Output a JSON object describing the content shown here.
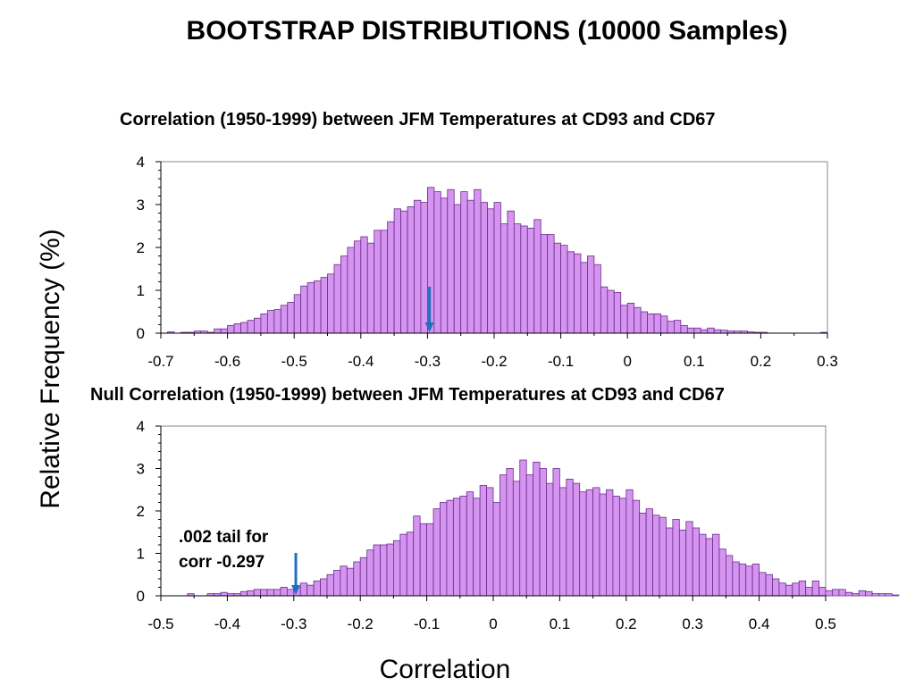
{
  "page_title": "BOOTSTRAP DISTRIBUTIONS (10000 Samples)",
  "shared_ylabel": "Relative Frequency (%)",
  "shared_xlabel": "Correlation",
  "colors": {
    "bar_fill": "#d494f0",
    "bar_stroke": "#6a2c8a",
    "arrow": "#1f6fc0",
    "axis": "#000000"
  },
  "chart_data": [
    {
      "type": "bar",
      "title": "Correlation (1950-1999) between JFM Temperatures at CD93 and CD67",
      "xlim": [
        -0.7,
        0.3
      ],
      "ylim": [
        0,
        4
      ],
      "xticks": [
        "-0.7",
        "-0.6",
        "-0.5",
        "-0.4",
        "-0.3",
        "-0.2",
        "-0.1",
        "0",
        "0.1",
        "0.2",
        "0.3"
      ],
      "yticks": [
        "0",
        "1",
        "2",
        "3",
        "4"
      ],
      "bin_width": 0.01,
      "x_start": -0.685,
      "values": [
        0.03,
        0.0,
        0.02,
        0.02,
        0.05,
        0.05,
        0.02,
        0.1,
        0.1,
        0.18,
        0.22,
        0.25,
        0.3,
        0.35,
        0.45,
        0.53,
        0.55,
        0.65,
        0.72,
        0.9,
        1.1,
        1.18,
        1.22,
        1.3,
        1.38,
        1.6,
        1.8,
        2.0,
        2.15,
        2.25,
        2.1,
        2.4,
        2.4,
        2.6,
        2.9,
        2.85,
        2.95,
        3.1,
        3.05,
        3.4,
        3.3,
        3.15,
        3.35,
        3.0,
        3.3,
        3.1,
        3.35,
        3.05,
        2.9,
        3.05,
        2.55,
        2.85,
        2.55,
        2.5,
        2.45,
        2.65,
        2.3,
        2.3,
        2.1,
        2.05,
        1.9,
        1.85,
        1.65,
        1.8,
        1.6,
        1.08,
        1.0,
        0.95,
        0.65,
        0.7,
        0.6,
        0.5,
        0.45,
        0.45,
        0.4,
        0.28,
        0.3,
        0.18,
        0.12,
        0.12,
        0.08,
        0.12,
        0.08,
        0.07,
        0.05,
        0.05,
        0.05,
        0.03,
        0.02,
        0.02,
        0.0,
        0.0,
        0.0,
        0.0,
        0.0,
        0.0,
        0.0,
        0.0,
        0.02
      ],
      "marker": {
        "x": -0.297,
        "type": "arrow"
      }
    },
    {
      "type": "bar",
      "title": "Null Correlation (1950-1999) between JFM Temperatures at CD93 and CD67",
      "xlim": [
        -0.5,
        0.5
      ],
      "ylim": [
        0,
        4
      ],
      "xticks": [
        "-0.5",
        "-0.4",
        "-0.3",
        "-0.2",
        "-0.1",
        "0",
        "0.1",
        "0.2",
        "0.3",
        "0.4",
        "0.5"
      ],
      "yticks": [
        "0",
        "1",
        "2",
        "3",
        "4"
      ],
      "bin_width": 0.01,
      "x_start": -0.455,
      "values": [
        0.05,
        0.0,
        0.0,
        0.05,
        0.05,
        0.08,
        0.05,
        0.05,
        0.1,
        0.12,
        0.15,
        0.15,
        0.15,
        0.15,
        0.2,
        0.15,
        0.2,
        0.3,
        0.25,
        0.35,
        0.4,
        0.5,
        0.6,
        0.7,
        0.65,
        0.8,
        0.9,
        1.08,
        1.2,
        1.2,
        1.22,
        1.3,
        1.45,
        1.5,
        1.88,
        1.7,
        1.7,
        2.05,
        2.2,
        2.25,
        2.3,
        2.35,
        2.45,
        2.3,
        2.6,
        2.55,
        2.2,
        2.85,
        3.0,
        2.7,
        3.2,
        2.85,
        3.15,
        3.0,
        2.65,
        3.0,
        2.55,
        2.75,
        2.65,
        2.45,
        2.5,
        2.55,
        2.4,
        2.5,
        2.35,
        2.3,
        2.5,
        2.25,
        1.95,
        2.05,
        1.9,
        1.85,
        1.6,
        1.8,
        1.55,
        1.75,
        1.6,
        1.45,
        1.35,
        1.45,
        1.1,
        0.95,
        0.8,
        0.75,
        0.7,
        0.75,
        0.55,
        0.5,
        0.4,
        0.3,
        0.25,
        0.3,
        0.35,
        0.2,
        0.35,
        0.2,
        0.12,
        0.15,
        0.15,
        0.08,
        0.05,
        0.12,
        0.1,
        0.05,
        0.05,
        0.05,
        0.02
      ],
      "marker": {
        "x": -0.297,
        "type": "arrow",
        "label_lines": [
          ".002 tail for",
          "corr -0.297"
        ]
      }
    }
  ]
}
